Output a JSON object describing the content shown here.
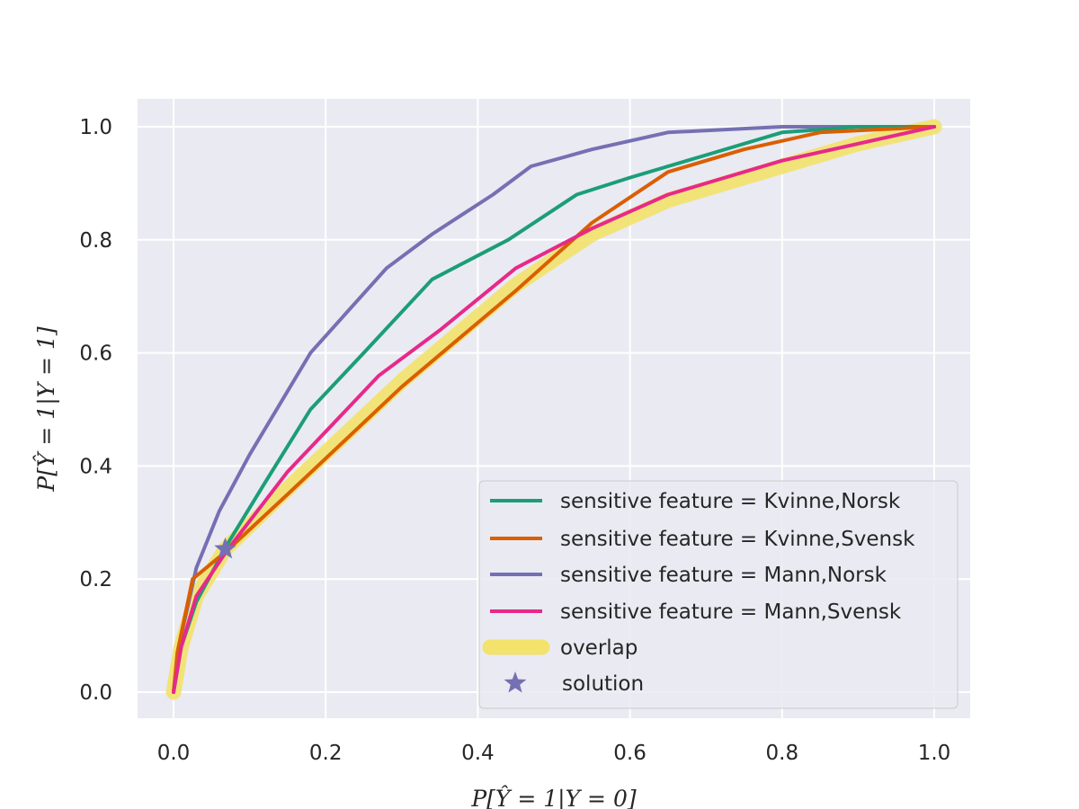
{
  "chart_data": {
    "type": "line",
    "xlabel": "P[Ŷ = 1|Y = 0]",
    "ylabel": "P[Ŷ = 1|Y = 1]",
    "xlim": [
      -0.05,
      1.05
    ],
    "ylim": [
      -0.045,
      1.045
    ],
    "xticks": [
      0.0,
      0.2,
      0.4,
      0.6,
      0.8,
      1.0
    ],
    "yticks": [
      0.0,
      0.2,
      0.4,
      0.6,
      0.8,
      1.0
    ],
    "xtick_labels": [
      "0.0",
      "0.2",
      "0.4",
      "0.6",
      "0.8",
      "1.0"
    ],
    "ytick_labels": [
      "0.0",
      "0.2",
      "0.4",
      "0.6",
      "0.8",
      "1.0"
    ],
    "grid": true,
    "legend_position": "bottom-right",
    "series": [
      {
        "name": "sensitive feature = Kvinne,Norsk",
        "color": "#1b9e77",
        "x": [
          0.0,
          0.01,
          0.03,
          0.07,
          0.12,
          0.18,
          0.25,
          0.34,
          0.44,
          0.53,
          0.6,
          0.7,
          0.8,
          0.9,
          1.0
        ],
        "y": [
          0.0,
          0.08,
          0.16,
          0.26,
          0.37,
          0.5,
          0.6,
          0.73,
          0.8,
          0.88,
          0.91,
          0.95,
          0.99,
          1.0,
          1.0
        ]
      },
      {
        "name": "sensitive feature = Kvinne,Svensk",
        "color": "#d95f02",
        "x": [
          0.0,
          0.005,
          0.025,
          0.07,
          0.15,
          0.3,
          0.45,
          0.55,
          0.65,
          0.75,
          0.85,
          1.0
        ],
        "y": [
          0.0,
          0.07,
          0.2,
          0.25,
          0.35,
          0.54,
          0.71,
          0.83,
          0.92,
          0.96,
          0.99,
          1.0
        ]
      },
      {
        "name": "sensitive feature = Mann,Norsk",
        "color": "#7570b3",
        "x": [
          0.0,
          0.01,
          0.03,
          0.06,
          0.1,
          0.18,
          0.28,
          0.34,
          0.42,
          0.47,
          0.55,
          0.65,
          0.8,
          1.0
        ],
        "y": [
          0.0,
          0.1,
          0.22,
          0.32,
          0.42,
          0.6,
          0.75,
          0.81,
          0.88,
          0.93,
          0.96,
          0.99,
          1.0,
          1.0
        ]
      },
      {
        "name": "sensitive feature = Mann,Svensk",
        "color": "#e7298a",
        "x": [
          0.0,
          0.01,
          0.03,
          0.07,
          0.15,
          0.27,
          0.35,
          0.45,
          0.55,
          0.65,
          0.8,
          1.0
        ],
        "y": [
          0.0,
          0.08,
          0.17,
          0.25,
          0.39,
          0.56,
          0.64,
          0.75,
          0.82,
          0.88,
          0.94,
          1.0
        ]
      }
    ],
    "overlap": {
      "name": "overlap",
      "color": "#f3e26b",
      "x": [
        0.0,
        0.01,
        0.03,
        0.068,
        0.15,
        0.3,
        0.45,
        0.55,
        0.65,
        0.8,
        0.9,
        1.0
      ],
      "y": [
        0.0,
        0.08,
        0.17,
        0.253,
        0.36,
        0.55,
        0.72,
        0.81,
        0.87,
        0.93,
        0.97,
        1.0
      ]
    },
    "solution": {
      "name": "solution",
      "color": "#7570b3",
      "x": 0.068,
      "y": 0.253
    }
  }
}
